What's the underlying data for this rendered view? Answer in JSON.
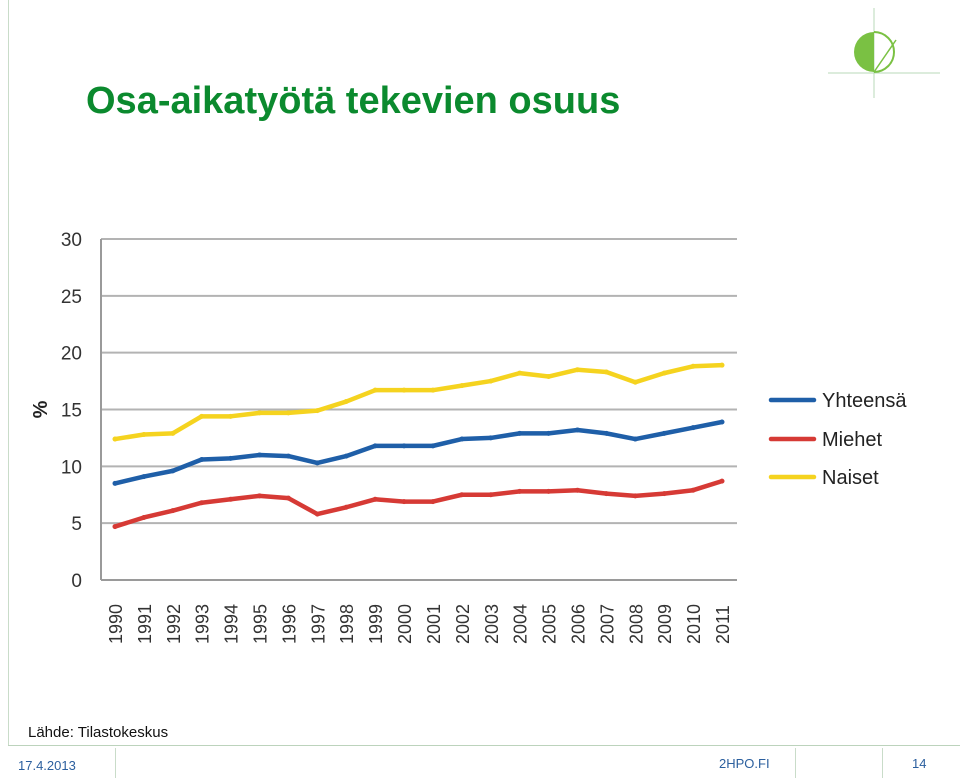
{
  "slide": {
    "title": "Osa-aikatyötä tekevien osuus",
    "source": "Lähde: Tilastokeskus",
    "footer": {
      "date": "17.4.2013",
      "site": "2HPO.FI",
      "page": "14"
    }
  },
  "chart_data": {
    "type": "line",
    "title": "",
    "xlabel": "",
    "ylabel": "%",
    "ylim": [
      0,
      30
    ],
    "yticks": [
      0,
      5,
      10,
      15,
      20,
      25,
      30
    ],
    "grid": true,
    "legend_position": "right",
    "categories": [
      "1990",
      "1991",
      "1992",
      "1993",
      "1994",
      "1995",
      "1996",
      "1997",
      "1998",
      "1999",
      "2000",
      "2001",
      "2002",
      "2003",
      "2004",
      "2005",
      "2006",
      "2007",
      "2008",
      "2009",
      "2010",
      "2011"
    ],
    "series": [
      {
        "name": "Yhteensä",
        "color": "#1f5fa8",
        "values": [
          8.5,
          9.1,
          9.6,
          10.6,
          10.7,
          11.0,
          10.9,
          10.3,
          10.9,
          11.8,
          11.8,
          11.8,
          12.4,
          12.5,
          12.9,
          12.9,
          13.2,
          12.9,
          12.4,
          12.9,
          13.4,
          13.9
        ]
      },
      {
        "name": "Miehet",
        "color": "#d63a35",
        "values": [
          4.7,
          5.5,
          6.1,
          6.8,
          7.1,
          7.4,
          7.2,
          5.8,
          6.4,
          7.1,
          6.9,
          6.9,
          7.5,
          7.5,
          7.8,
          7.8,
          7.9,
          7.6,
          7.4,
          7.6,
          7.9,
          8.7
        ]
      },
      {
        "name": "Naiset",
        "color": "#f5d31f",
        "values": [
          12.4,
          12.8,
          12.9,
          14.4,
          14.4,
          14.7,
          14.7,
          14.9,
          15.7,
          16.7,
          16.7,
          16.7,
          17.1,
          17.5,
          18.2,
          17.9,
          18.5,
          18.3,
          17.4,
          18.2,
          18.8,
          18.9
        ]
      }
    ]
  }
}
